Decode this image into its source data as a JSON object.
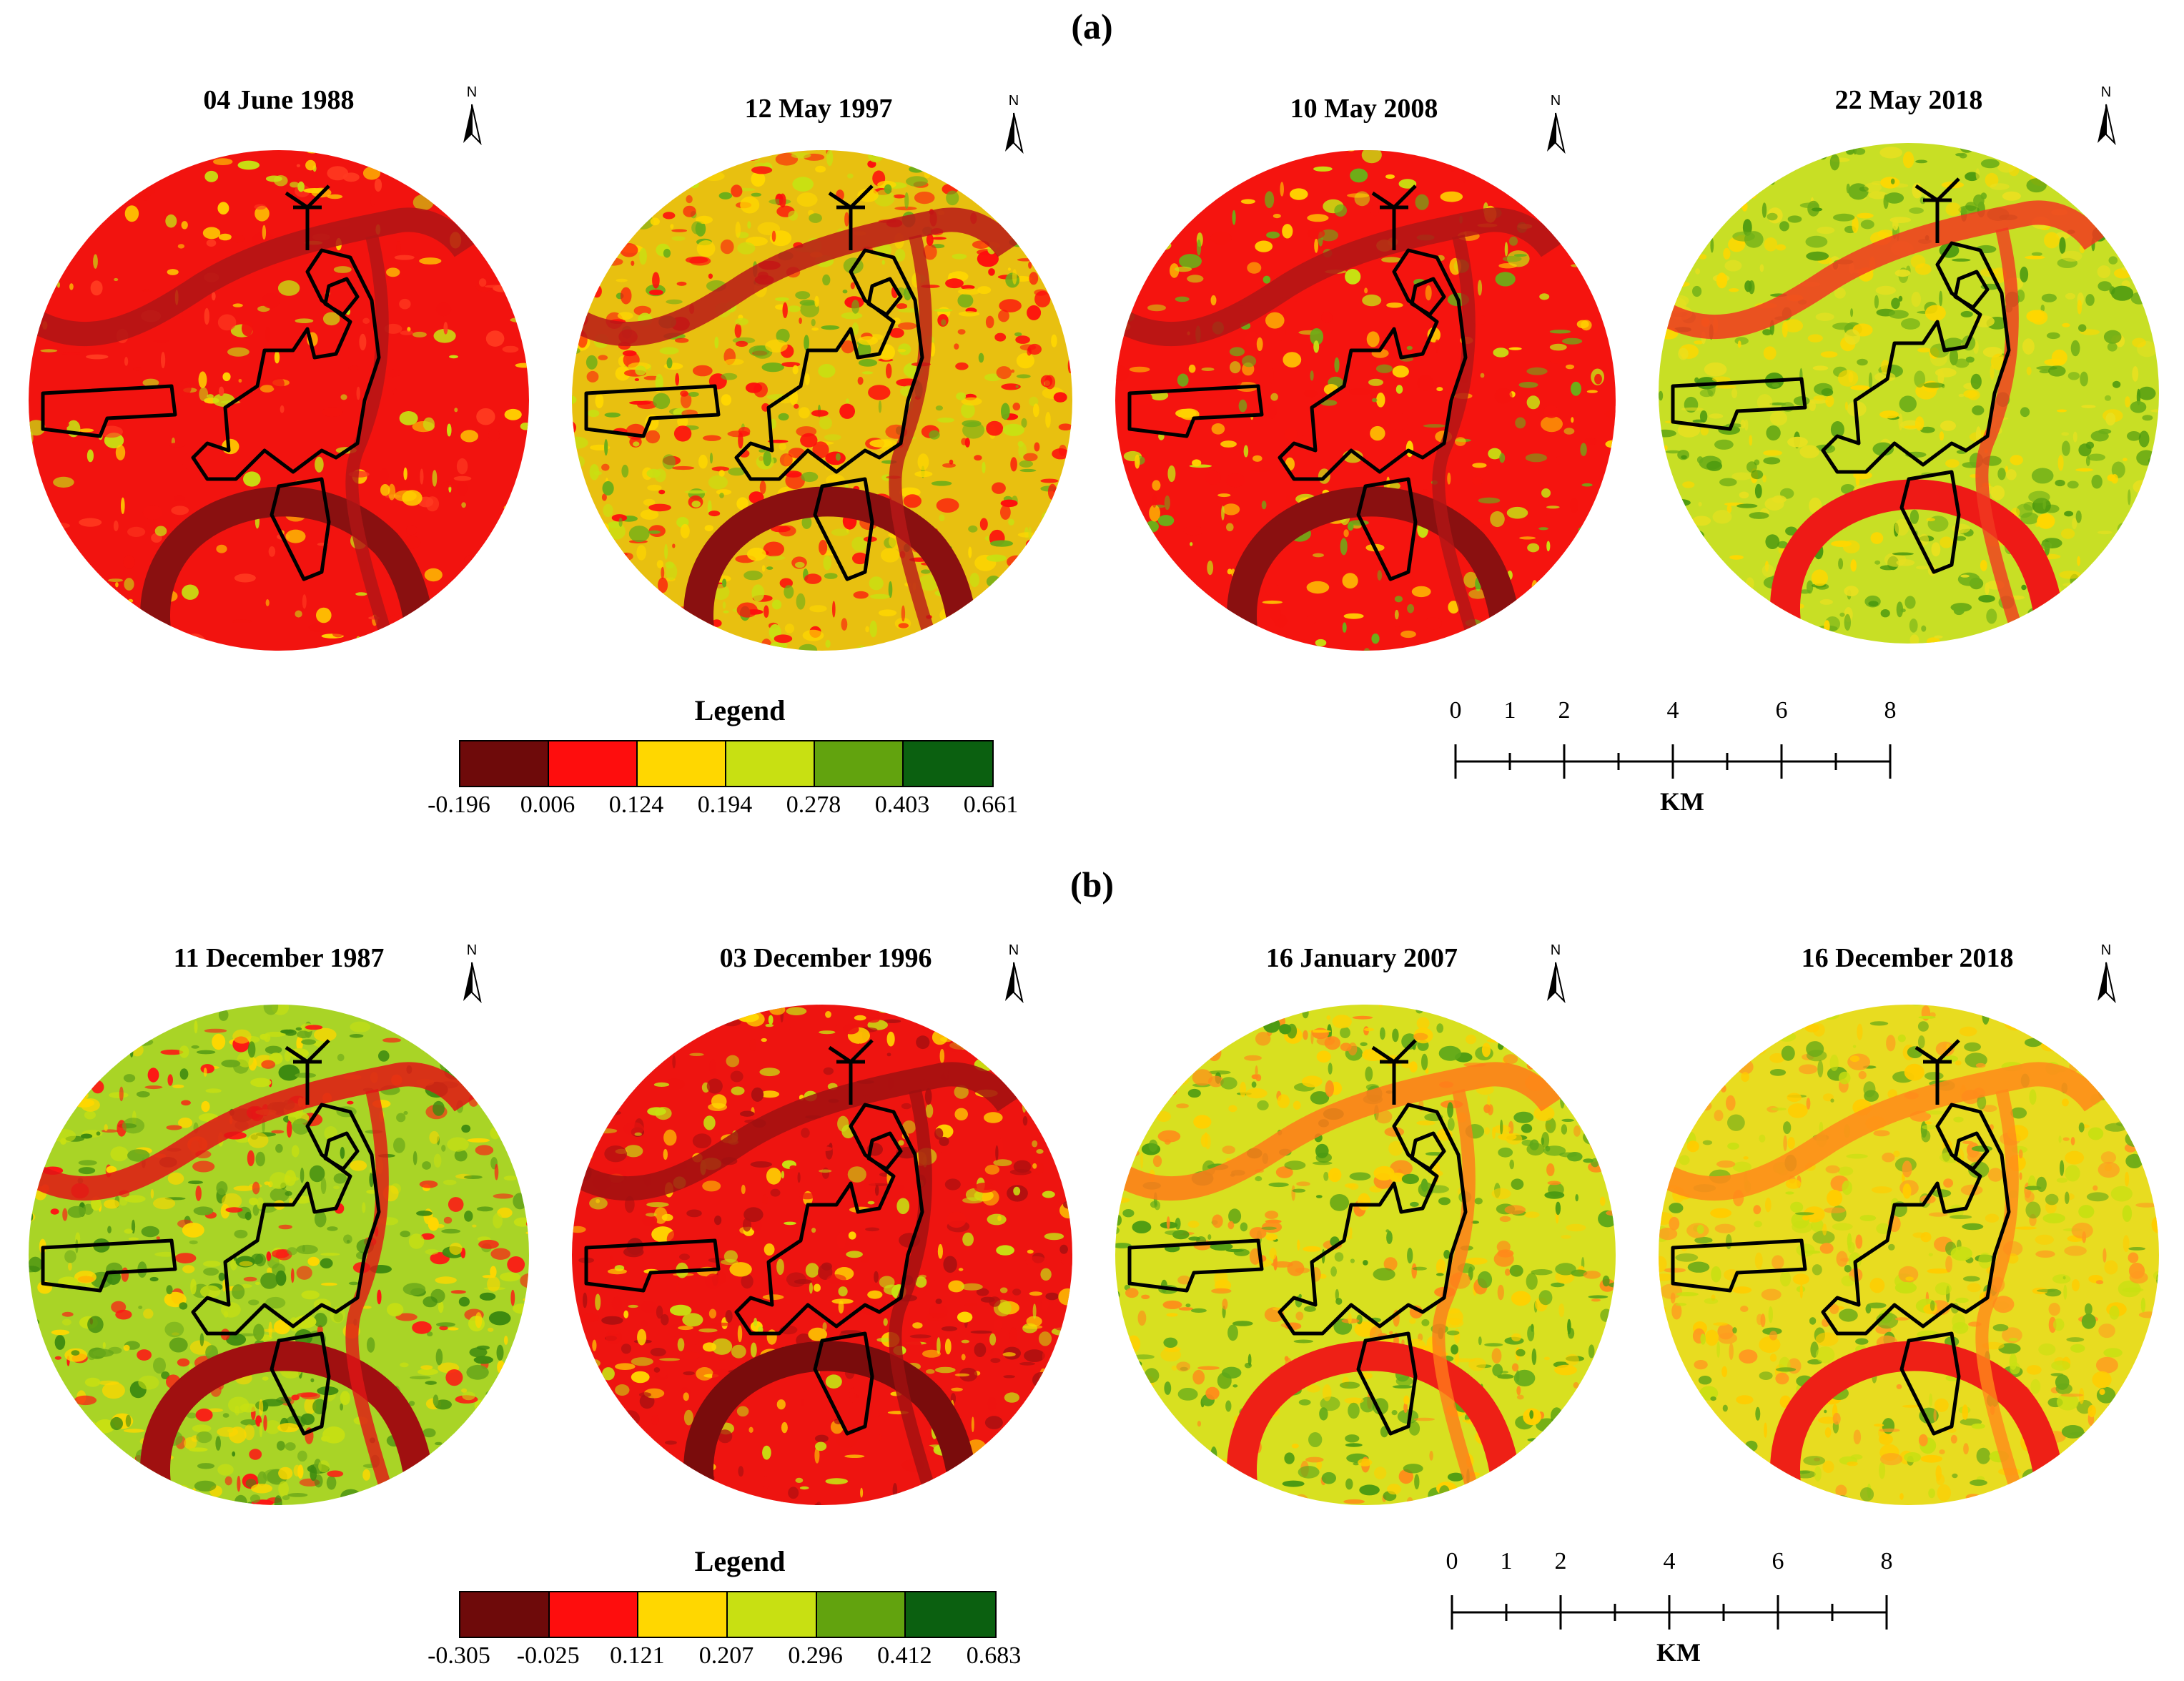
{
  "panels": [
    {
      "label": "(a)",
      "maps": [
        {
          "title": "04 June 1988",
          "scheme": "red"
        },
        {
          "title": "12 May 1997",
          "scheme": "mixed"
        },
        {
          "title": "10 May 2008",
          "scheme": "red2"
        },
        {
          "title": "22 May 2018",
          "scheme": "greenyellow"
        }
      ],
      "legend": {
        "title": "Legend",
        "colors": [
          "#6e0a0a",
          "#fe0d0d",
          "#ffd700",
          "#c8e012",
          "#62a30e",
          "#0b6010"
        ],
        "ticks": [
          "-0.196",
          "0.006",
          "0.124",
          "0.194",
          "0.278",
          "0.403",
          "0.661"
        ]
      },
      "scale": {
        "numbers": [
          "0",
          "1",
          "2",
          "4",
          "6",
          "8"
        ],
        "unit": "KM"
      }
    },
    {
      "label": "(b)",
      "maps": [
        {
          "title": "11 December 1987",
          "scheme": "greenmix"
        },
        {
          "title": "03 December 1996",
          "scheme": "redmix"
        },
        {
          "title": "16 January 2007",
          "scheme": "greenorange"
        },
        {
          "title": "16 December 2018",
          "scheme": "yelloworange"
        }
      ],
      "legend": {
        "title": "Legend",
        "colors": [
          "#6e0a0a",
          "#fe0d0d",
          "#ffd700",
          "#c8e012",
          "#62a30e",
          "#0b6010"
        ],
        "ticks": [
          "-0.305",
          "-0.025",
          "0.121",
          "0.207",
          "0.296",
          "0.412",
          "0.683"
        ]
      },
      "scale": {
        "numbers": [
          "0",
          "1",
          "2",
          "4",
          "6",
          "8"
        ],
        "unit": "KM"
      }
    }
  ],
  "north_label": "N"
}
